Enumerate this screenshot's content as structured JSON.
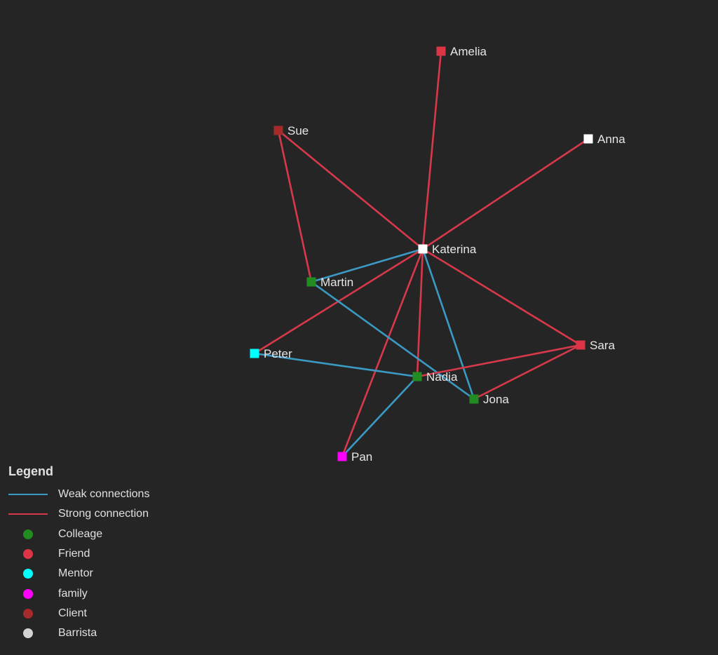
{
  "nodes": [
    {
      "id": "amelia",
      "label": "Amelia",
      "group": "Friend"
    },
    {
      "id": "sue",
      "label": "Sue",
      "group": "Client"
    },
    {
      "id": "anna",
      "label": "Anna",
      "group": "Barrista"
    },
    {
      "id": "katerina",
      "label": "Katerina",
      "group": "Barrista"
    },
    {
      "id": "martin",
      "label": "Martin",
      "group": "Colleage"
    },
    {
      "id": "peter",
      "label": "Peter",
      "group": "Mentor"
    },
    {
      "id": "nadia",
      "label": "Nadia",
      "group": "Colleage"
    },
    {
      "id": "sara",
      "label": "Sara",
      "group": "Friend"
    },
    {
      "id": "jona",
      "label": "Jona",
      "group": "Colleage"
    },
    {
      "id": "pan",
      "label": "Pan",
      "group": "family"
    }
  ],
  "edges": [
    {
      "source": "katerina",
      "target": "amelia",
      "type": "strong"
    },
    {
      "source": "katerina",
      "target": "sue",
      "type": "strong"
    },
    {
      "source": "katerina",
      "target": "anna",
      "type": "strong"
    },
    {
      "source": "sue",
      "target": "martin",
      "type": "strong"
    },
    {
      "source": "katerina",
      "target": "martin",
      "type": "weak"
    },
    {
      "source": "katerina",
      "target": "peter",
      "type": "strong"
    },
    {
      "source": "katerina",
      "target": "nadia",
      "type": "strong"
    },
    {
      "source": "katerina",
      "target": "pan",
      "type": "strong"
    },
    {
      "source": "katerina",
      "target": "jona",
      "type": "weak"
    },
    {
      "source": "katerina",
      "target": "sara",
      "type": "strong"
    },
    {
      "source": "martin",
      "target": "jona",
      "type": "weak"
    },
    {
      "source": "peter",
      "target": "nadia",
      "type": "weak"
    },
    {
      "source": "nadia",
      "target": "pan",
      "type": "weak"
    },
    {
      "source": "nadia",
      "target": "sara",
      "type": "strong"
    },
    {
      "source": "sara",
      "target": "jona",
      "type": "strong"
    }
  ],
  "colors": {
    "weak": "#3b9ac4",
    "strong": "#d7394a",
    "Colleage": "#228b22",
    "Friend": "#dc3545",
    "Mentor": "#00ffff",
    "family": "#ff00ff",
    "Client": "#a52a2a",
    "Barrista": "#ffffff",
    "Barrista_legend": "#d3d3d3",
    "background": "#252525"
  },
  "legend": {
    "title": "Legend",
    "lines": [
      {
        "label": "Weak connections",
        "type": "weak"
      },
      {
        "label": "Strong connection",
        "type": "strong"
      }
    ],
    "categories": [
      {
        "label": "Colleage",
        "color": "#228b22"
      },
      {
        "label": "Friend",
        "color": "#dc3545"
      },
      {
        "label": "Mentor",
        "color": "#00ffff"
      },
      {
        "label": "family",
        "color": "#ff00ff"
      },
      {
        "label": "Client",
        "color": "#a52a2a"
      },
      {
        "label": "Barrista",
        "color": "#d3d3d3"
      }
    ]
  }
}
